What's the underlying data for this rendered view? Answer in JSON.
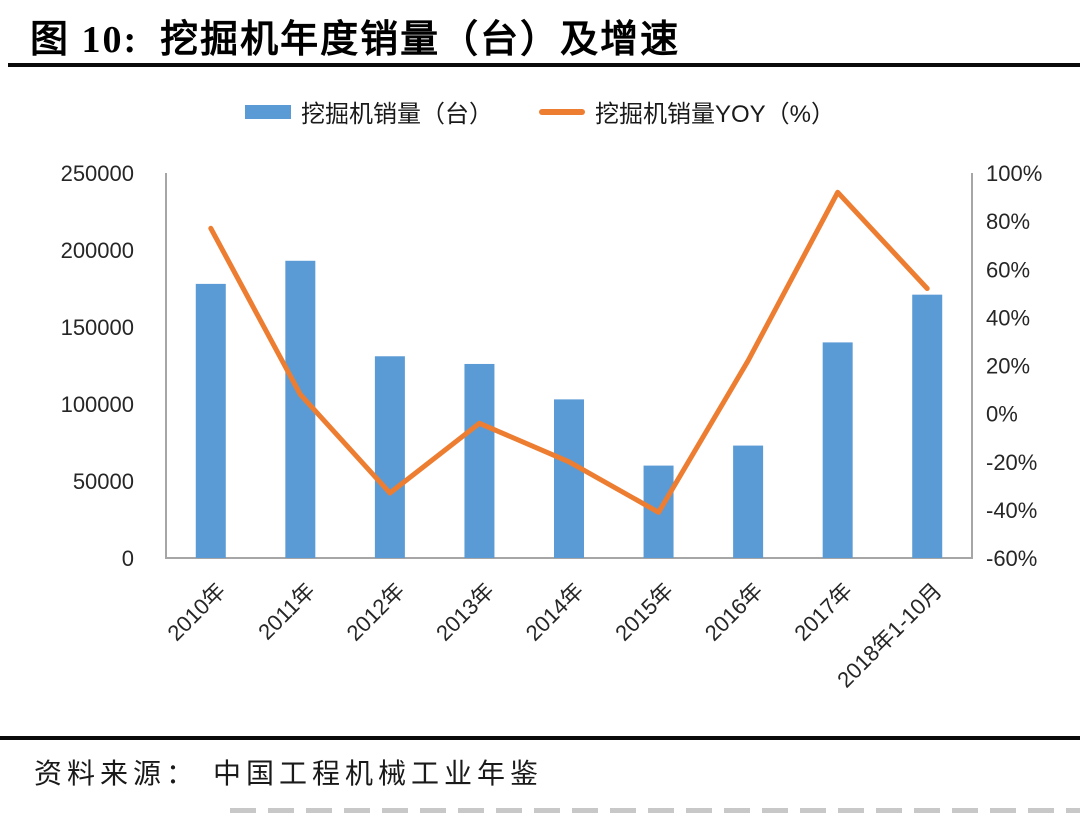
{
  "figure": {
    "number_label": "图 10:",
    "title": "挖掘机年度销量（台）及增速",
    "source_label": "资料来源：",
    "source_text": "中国工程机械工业年鉴"
  },
  "legend": [
    {
      "label": "挖掘机销量（台）",
      "type": "bar",
      "color": "#5B9BD5"
    },
    {
      "label": "挖掘机销量YOY（%）",
      "type": "line",
      "color": "#ED7D31"
    }
  ],
  "chart_data": {
    "type": "bar",
    "subtype": "bar-line-combo",
    "title": "挖掘机年度销量（台）及增速",
    "categories": [
      "2010年",
      "2011年",
      "2012年",
      "2013年",
      "2014年",
      "2015年",
      "2016年",
      "2017年",
      "2018年1-10月"
    ],
    "series": [
      {
        "name": "挖掘机销量（台）",
        "type": "bar",
        "axis": "left",
        "color": "#5B9BD5",
        "values": [
          178000,
          193000,
          131000,
          126000,
          103000,
          60000,
          73000,
          140000,
          171000
        ]
      },
      {
        "name": "挖掘机销量YOY（%）",
        "type": "line",
        "axis": "right",
        "color": "#ED7D31",
        "values": [
          77,
          8,
          -33,
          -4,
          -20,
          -41,
          22,
          92,
          52
        ]
      }
    ],
    "left_axis": {
      "min": 0,
      "max": 250000,
      "step": 50000,
      "ticks": [
        "250000",
        "200000",
        "150000",
        "100000",
        "50000",
        "0"
      ]
    },
    "right_axis": {
      "min": -60,
      "max": 100,
      "step": 20,
      "ticks": [
        "100%",
        "80%",
        "60%",
        "40%",
        "20%",
        "0%",
        "-20%",
        "-40%",
        "-60%"
      ]
    },
    "grid": false,
    "legend_position": "top",
    "axis_line_color": "#a6a6a6",
    "tick_label_color": "#262626"
  }
}
